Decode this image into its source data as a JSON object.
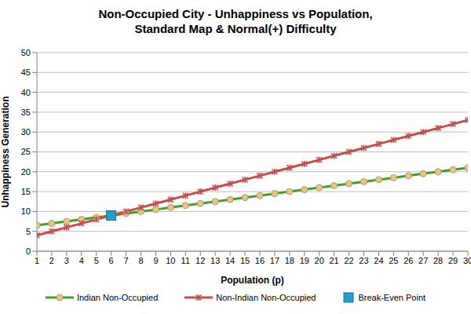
{
  "chart_data": {
    "type": "line",
    "title": [
      "Non-Occupied City - Unhappiness vs Population,",
      "Standard Map & Normal(+) Difficulty"
    ],
    "x_label": "Population (p)",
    "y_label": "Unhappiness Generation",
    "x": [
      1,
      2,
      3,
      4,
      5,
      6,
      7,
      8,
      9,
      10,
      11,
      12,
      13,
      14,
      15,
      16,
      17,
      18,
      19,
      20,
      21,
      22,
      23,
      24,
      25,
      26,
      27,
      28,
      29,
      30
    ],
    "xlim": [
      1,
      30
    ],
    "xticks": [
      1,
      2,
      3,
      4,
      5,
      6,
      7,
      8,
      9,
      10,
      11,
      12,
      13,
      14,
      15,
      16,
      17,
      18,
      19,
      20,
      21,
      22,
      23,
      24,
      25,
      26,
      27,
      28,
      29,
      30
    ],
    "ylim": [
      0,
      50
    ],
    "yticks": [
      0,
      5,
      10,
      15,
      20,
      25,
      30,
      35,
      40,
      45,
      50
    ],
    "grid": true,
    "legend": "bottom",
    "series": [
      {
        "name": "Indian Non-Occupied",
        "color": "#3f9f2f",
        "marker": "circle",
        "values": [
          6.5,
          7,
          7.5,
          8,
          8.5,
          9,
          9.5,
          10,
          10.5,
          11,
          11.5,
          12,
          12.5,
          13,
          13.5,
          14,
          14.5,
          15,
          15.5,
          16,
          16.5,
          17,
          17.5,
          18,
          18.5,
          19,
          19.5,
          20,
          20.5,
          21
        ]
      },
      {
        "name": "Non-Indian Non-Occupied",
        "color": "#c0504d",
        "marker": "star",
        "values": [
          4,
          5,
          6,
          7,
          8,
          9,
          10,
          11,
          12,
          13,
          14,
          15,
          16,
          17,
          18,
          19,
          20,
          21,
          22,
          23,
          24,
          25,
          26,
          27,
          28,
          29,
          30,
          31,
          32,
          33
        ]
      },
      {
        "name": "Break-Even Point",
        "color": "#1ea0c8",
        "type": "scatter",
        "marker": "square",
        "values": [
          null,
          null,
          null,
          null,
          null,
          9,
          null,
          null,
          null,
          null,
          null,
          null,
          null,
          null,
          null,
          null,
          null,
          null,
          null,
          null,
          null,
          null,
          null,
          null,
          null,
          null,
          null,
          null,
          null,
          null
        ]
      }
    ]
  }
}
